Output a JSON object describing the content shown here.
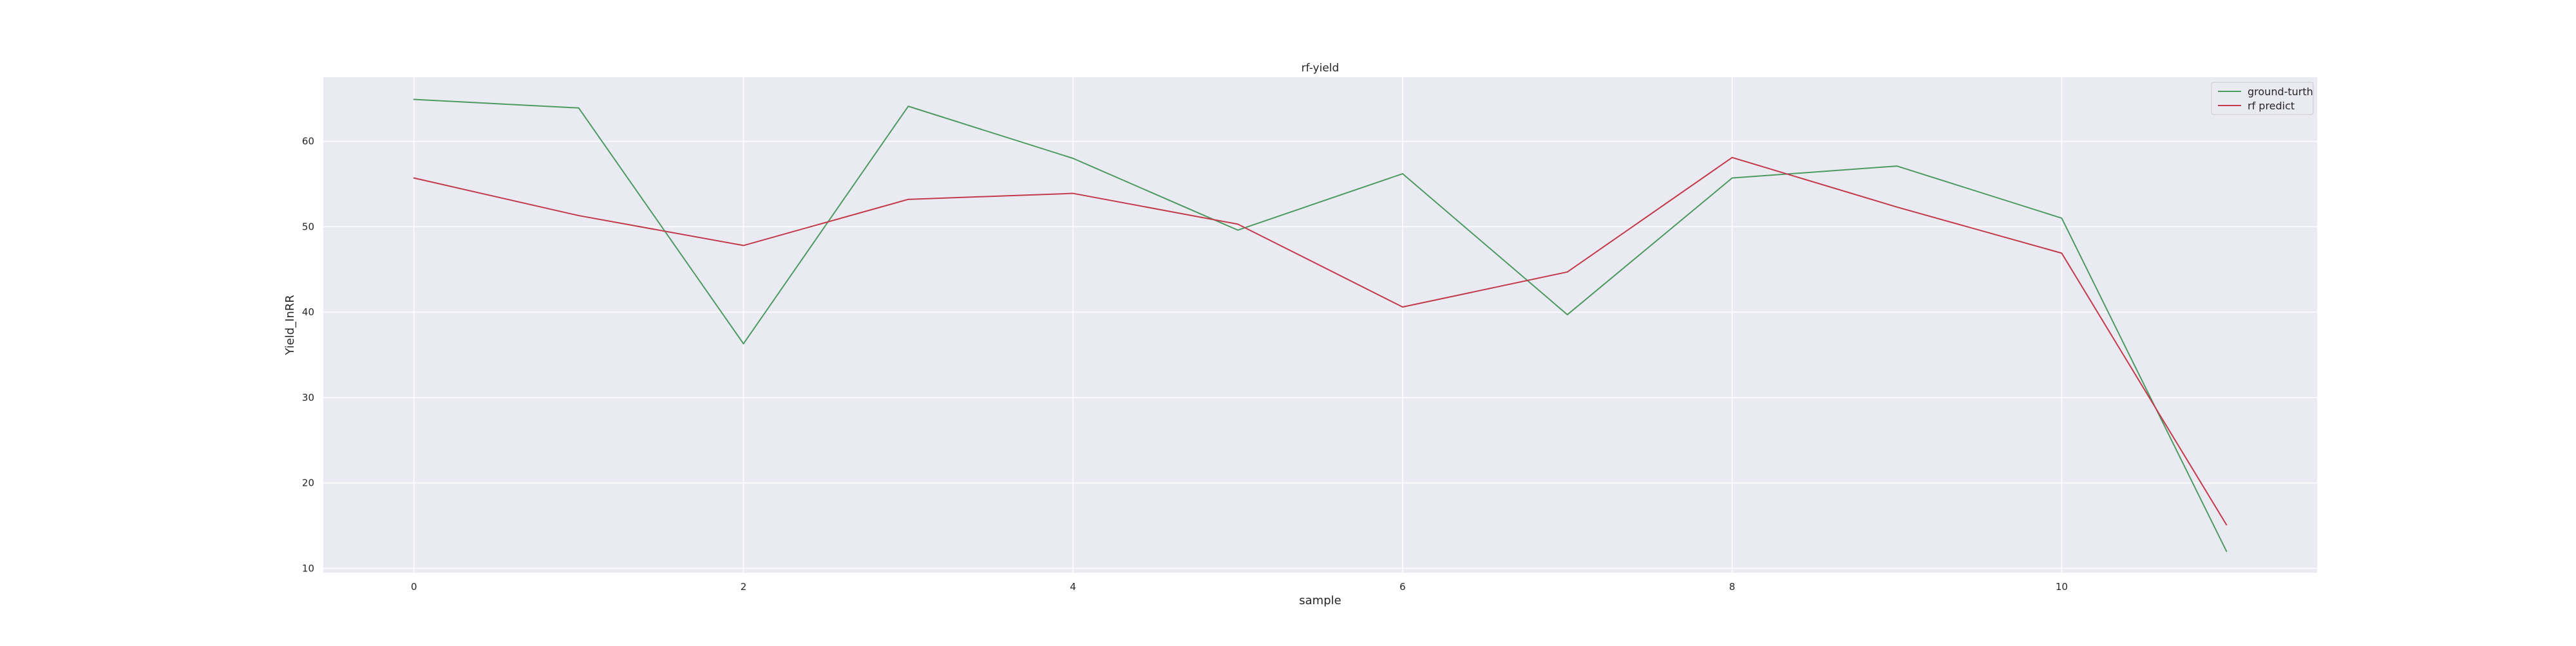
{
  "chart_data": {
    "type": "line",
    "title": "rf-yield",
    "xlabel": "sample",
    "ylabel": "Yield_InRR",
    "x": [
      0,
      1,
      2,
      3,
      4,
      5,
      6,
      7,
      8,
      9,
      10,
      11
    ],
    "xlim": [
      -0.55,
      11.55
    ],
    "ylim": [
      9.5,
      67.5
    ],
    "xticks": [
      0,
      2,
      4,
      6,
      8,
      10
    ],
    "yticks": [
      10,
      20,
      30,
      40,
      50,
      60
    ],
    "grid": true,
    "legend_position": "top-right",
    "series": [
      {
        "name": "ground-turth",
        "color": "#4c9a60",
        "values": [
          64.9,
          63.9,
          36.3,
          64.1,
          58.0,
          49.6,
          56.2,
          39.7,
          55.7,
          57.1,
          51.0,
          12.0
        ]
      },
      {
        "name": "rf predict",
        "color": "#c23a4a",
        "values": [
          55.7,
          51.3,
          47.8,
          53.2,
          53.9,
          50.3,
          40.6,
          44.7,
          58.1,
          52.3,
          46.9,
          15.1
        ]
      }
    ]
  }
}
